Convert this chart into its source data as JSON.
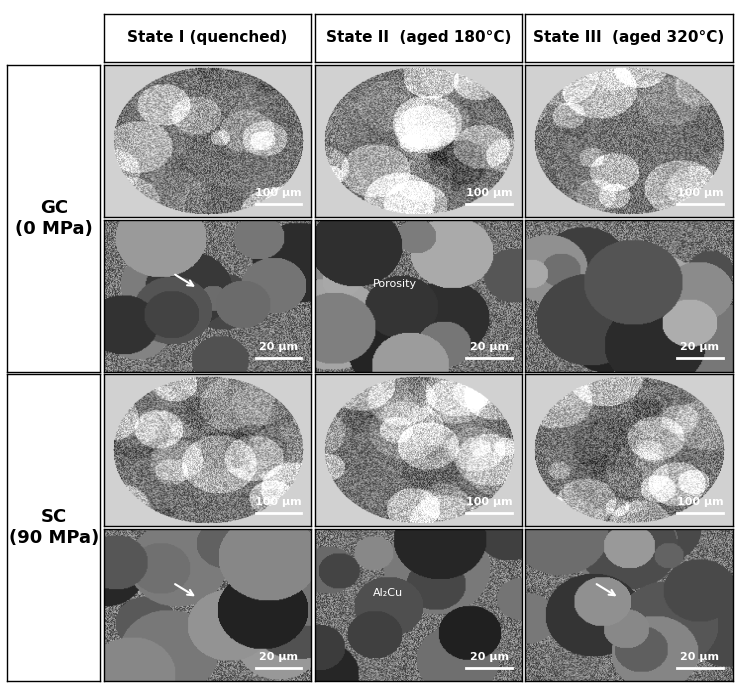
{
  "col_headers": [
    "State I (quenched)",
    "State II  (aged 180°C)",
    "State III  (aged 320°C)"
  ],
  "row_labels": [
    [
      "GC",
      "(0 MPa)"
    ],
    [
      "SC",
      "(90 MPa)"
    ]
  ],
  "scale_bars_top": [
    "100 μm",
    "100 μm",
    "100 μm"
  ],
  "scale_bars_bottom": [
    "20 μm",
    "20 μm",
    "20 μm"
  ],
  "annotations": {
    "gc_row2_col2": "Porosity",
    "sc_row2_col2": "Al₂Cu"
  },
  "bg_color": "#ffffff",
  "border_color": "#000000",
  "header_fontsize": 11,
  "label_fontsize": 13,
  "scalebar_fontsize": 8,
  "annotation_fontsize": 8,
  "figure_width": 7.4,
  "figure_height": 6.88,
  "dpi": 100
}
